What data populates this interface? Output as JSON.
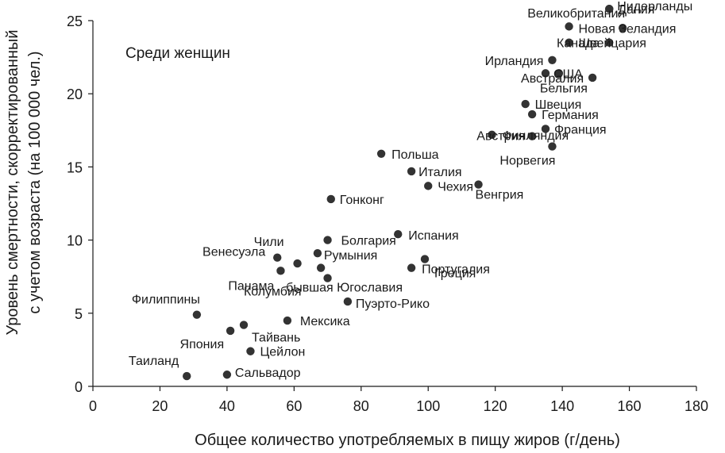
{
  "chart_data": {
    "type": "scatter",
    "title": "",
    "annotation": "Среди женщин",
    "xlabel": "Общее количество употребляемых в пищу жиров (г/день)",
    "ylabel_line1": "Уровень смертности, скорректированный",
    "ylabel_line2": "с учетом возраста (на 100 000 чел.)",
    "xlim": [
      0,
      180
    ],
    "ylim": [
      0,
      25
    ],
    "x_ticks": [
      0,
      20,
      40,
      60,
      80,
      100,
      120,
      140,
      160,
      180
    ],
    "y_ticks": [
      0,
      5,
      10,
      15,
      20,
      25
    ],
    "grid": false,
    "marker_color": "#333333",
    "points": [
      {
        "label": "Таиланд",
        "x": 28,
        "y": 0.7
      },
      {
        "label": "Сальвадор",
        "x": 40,
        "y": 0.8
      },
      {
        "label": "Цейлон",
        "x": 47,
        "y": 2.4
      },
      {
        "label": "Япония",
        "x": 41,
        "y": 3.8
      },
      {
        "label": "Тайвань",
        "x": 45,
        "y": 4.2
      },
      {
        "label": "Филиппины",
        "x": 31,
        "y": 4.9
      },
      {
        "label": "Мексика",
        "x": 58,
        "y": 4.5
      },
      {
        "label": "Колумбия",
        "x": 70,
        "y": 7.4
      },
      {
        "label": "Пуэрто-Рико",
        "x": 76,
        "y": 5.8
      },
      {
        "label": "бывшая Югославия",
        "x": 68,
        "y": 8.1
      },
      {
        "label": "Панама",
        "x": 56,
        "y": 7.9
      },
      {
        "label": "Венесуэла",
        "x": 55,
        "y": 8.8
      },
      {
        "label": "Чили",
        "x": 61,
        "y": 8.4
      },
      {
        "label": "Румыния",
        "x": 67,
        "y": 9.1
      },
      {
        "label": "Болгария",
        "x": 70,
        "y": 10.0
      },
      {
        "label": "Гонконг",
        "x": 71,
        "y": 12.8
      },
      {
        "label": "Португалия",
        "x": 95,
        "y": 8.1
      },
      {
        "label": "Греция",
        "x": 99,
        "y": 8.7
      },
      {
        "label": "Испания",
        "x": 91,
        "y": 10.4
      },
      {
        "label": "Польша",
        "x": 86,
        "y": 15.9
      },
      {
        "label": "Италия",
        "x": 95,
        "y": 14.7
      },
      {
        "label": "Чехия",
        "x": 100,
        "y": 13.7
      },
      {
        "label": "Венгрия",
        "x": 115,
        "y": 13.8
      },
      {
        "label": "Финляндия",
        "x": 119,
        "y": 17.2
      },
      {
        "label": "Австрия",
        "x": 131,
        "y": 17.1
      },
      {
        "label": "Норвегия",
        "x": 137,
        "y": 16.4
      },
      {
        "label": "Франция",
        "x": 135,
        "y": 17.6
      },
      {
        "label": "Германия",
        "x": 131,
        "y": 18.6
      },
      {
        "label": "Швеция",
        "x": 129,
        "y": 19.3
      },
      {
        "label": "Австралия",
        "x": 149,
        "y": 21.1
      },
      {
        "label": "Бельгия",
        "x": 139,
        "y": 21.4
      },
      {
        "label": "США",
        "x": 135,
        "y": 21.4
      },
      {
        "label": "Ирландия",
        "x": 137,
        "y": 22.3
      },
      {
        "label": "Швейцария",
        "x": 142,
        "y": 23.5
      },
      {
        "label": "Канада",
        "x": 154,
        "y": 23.5
      },
      {
        "label": "Новая Зеландия",
        "x": 142,
        "y": 24.6
      },
      {
        "label": "Великобритания",
        "x": 158,
        "y": 24.5
      },
      {
        "label": "Дания",
        "x": 154,
        "y": 25.8
      },
      {
        "label": "Нидерланды",
        "x": 154,
        "y": 25.8
      }
    ]
  }
}
